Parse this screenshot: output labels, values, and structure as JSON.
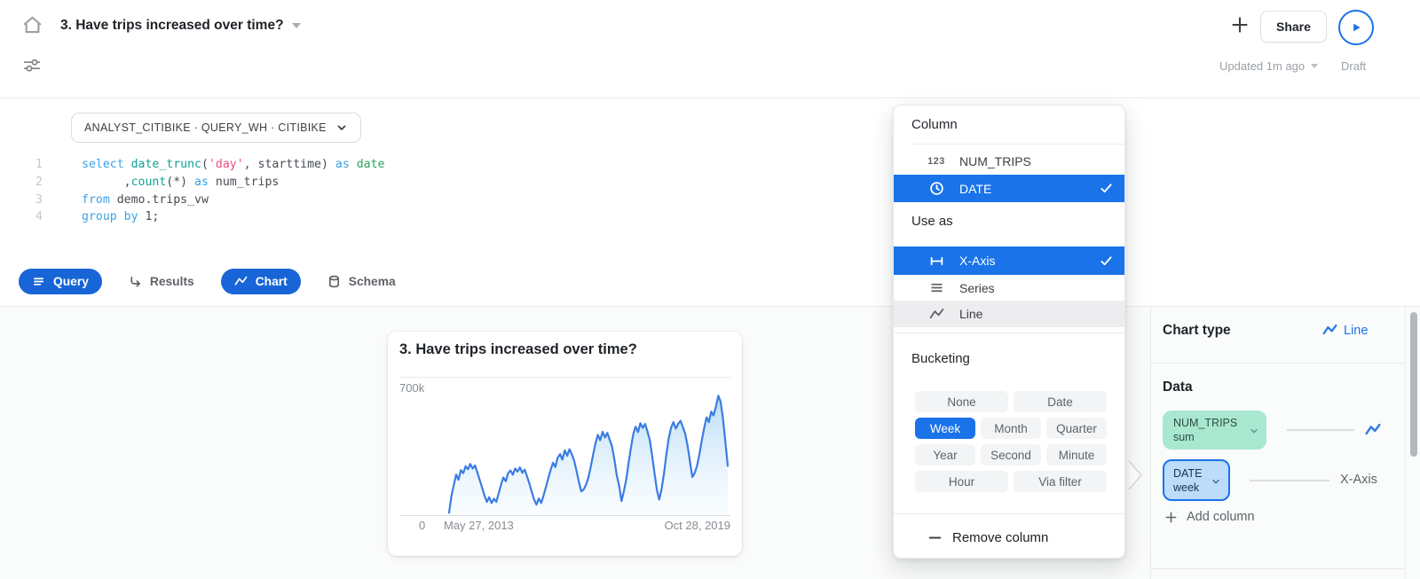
{
  "colors": {
    "accent": "#1a73e8",
    "tab_pill_blue": "#1765d7",
    "selected_row_blue": "#1a73e8",
    "mint_pill_bg": "#a9e8d0",
    "date_pill_bg": "#bcdcf9",
    "chart_line": "#3b7ce3",
    "muted_gray": "#9aa0a6"
  },
  "header": {
    "title": "3. Have trips increased over time?",
    "share": "Share",
    "updated": "Updated 1m ago",
    "draft": "Draft"
  },
  "editor": {
    "context": "ANALYST_CITIBIKE · QUERY_WH · CITIBIKE",
    "lines": [
      {
        "n": "1",
        "segs": [
          [
            "select",
            "kw"
          ],
          [
            " ",
            "pl"
          ],
          [
            "date_trunc",
            "fn"
          ],
          [
            "(",
            "pl"
          ],
          [
            "'day'",
            "str"
          ],
          [
            ", starttime) ",
            "pl"
          ],
          [
            "as",
            "kw"
          ],
          [
            " ",
            "pl"
          ],
          [
            "date",
            "ty"
          ]
        ]
      },
      {
        "n": "2",
        "segs": [
          [
            "      ,",
            "pl"
          ],
          [
            "count",
            "fn"
          ],
          [
            "(*) ",
            "pl"
          ],
          [
            "as",
            "kw"
          ],
          [
            " num_trips",
            "pl"
          ]
        ]
      },
      {
        "n": "3",
        "segs": [
          [
            "from",
            "kw"
          ],
          [
            " demo.trips_vw",
            "pl"
          ]
        ]
      },
      {
        "n": "4",
        "segs": [
          [
            "group by",
            "kw"
          ],
          [
            " 1;",
            "pl"
          ]
        ]
      }
    ]
  },
  "tabs": [
    {
      "label": "Query",
      "icon": "menu-lines",
      "active": true
    },
    {
      "label": "Results",
      "icon": "return-arrow",
      "active": false
    },
    {
      "label": "Chart",
      "icon": "zigzag",
      "active": true
    },
    {
      "label": "Schema",
      "icon": "database",
      "active": false
    }
  ],
  "chart_card": {
    "title": "3. Have trips increased over time?",
    "y_max_label": "700k",
    "y_zero_label": "0",
    "x_start_label": "May 27, 2013",
    "x_end_label": "Oct 28, 2019"
  },
  "chart_data": {
    "type": "line",
    "title": "3. Have trips increased over time?",
    "x_bucket": "week",
    "x_start": "2013-05-27",
    "x_end": "2019-10-28",
    "x_axis_labels": [
      "May 27, 2013",
      "Oct 28, 2019"
    ],
    "y_axis_ticks": [
      "0",
      "700k"
    ],
    "ylim": [
      0,
      700000
    ],
    "series_name": "NUM_TRIPS (sum)",
    "values_unit": "thousands of weekly trips (approx., read from pixels)",
    "values": [
      8,
      95,
      150,
      205,
      178,
      228,
      212,
      248,
      232,
      260,
      236,
      252,
      215,
      176,
      136,
      96,
      64,
      88,
      58,
      80,
      64,
      108,
      152,
      190,
      170,
      212,
      226,
      204,
      236,
      220,
      242,
      214,
      230,
      196,
      158,
      116,
      76,
      50,
      82,
      58,
      96,
      140,
      186,
      228,
      266,
      244,
      292,
      310,
      282,
      330,
      302,
      336,
      308,
      276,
      222,
      164,
      118,
      128,
      152,
      190,
      246,
      308,
      366,
      410,
      382,
      426,
      396,
      420,
      386,
      350,
      282,
      202,
      148,
      68,
      118,
      178,
      262,
      342,
      415,
      452,
      424,
      470,
      446,
      466,
      428,
      382,
      302,
      212,
      125,
      76,
      132,
      212,
      308,
      392,
      446,
      476,
      442,
      466,
      482,
      450,
      415,
      352,
      272,
      192,
      212,
      250,
      310,
      380,
      444,
      500,
      476,
      530,
      510,
      556,
      612,
      580,
      492,
      375,
      250
    ]
  },
  "menu": {
    "column_label": "Column",
    "columns": [
      {
        "label": "NUM_TRIPS",
        "icon": "number-123",
        "selected": false
      },
      {
        "label": "DATE",
        "icon": "clock",
        "selected": true
      }
    ],
    "use_as_label": "Use as",
    "use_as": [
      {
        "label": "X-Axis",
        "icon": "x-axis",
        "selected": true,
        "hover": false
      },
      {
        "label": "Series",
        "icon": "series-lines",
        "selected": false,
        "hover": false
      },
      {
        "label": "Line",
        "icon": "zigzag",
        "selected": false,
        "hover": true
      }
    ],
    "bucketing_label": "Bucketing",
    "bucket_rows": [
      [
        {
          "label": "None",
          "selected": false
        },
        {
          "label": "Date",
          "selected": false
        }
      ],
      [
        {
          "label": "Week",
          "selected": true
        },
        {
          "label": "Month",
          "selected": false
        },
        {
          "label": "Quarter",
          "selected": false
        }
      ],
      [
        {
          "label": "Year",
          "selected": false
        },
        {
          "label": "Second",
          "selected": false
        },
        {
          "label": "Minute",
          "selected": false
        }
      ],
      [
        {
          "label": "Hour",
          "selected": false
        },
        {
          "label": "Via filter",
          "selected": false
        }
      ]
    ],
    "remove_label": "Remove column"
  },
  "panel": {
    "chart_type_label": "Chart type",
    "chart_type_value": "Line",
    "data_label": "Data",
    "fields": [
      {
        "name": "NUM_TRIPS",
        "modifier": "sum"
      },
      {
        "name": "DATE",
        "modifier": "week"
      }
    ],
    "x_axis_label": "X-Axis",
    "add_column_label": "Add column"
  }
}
